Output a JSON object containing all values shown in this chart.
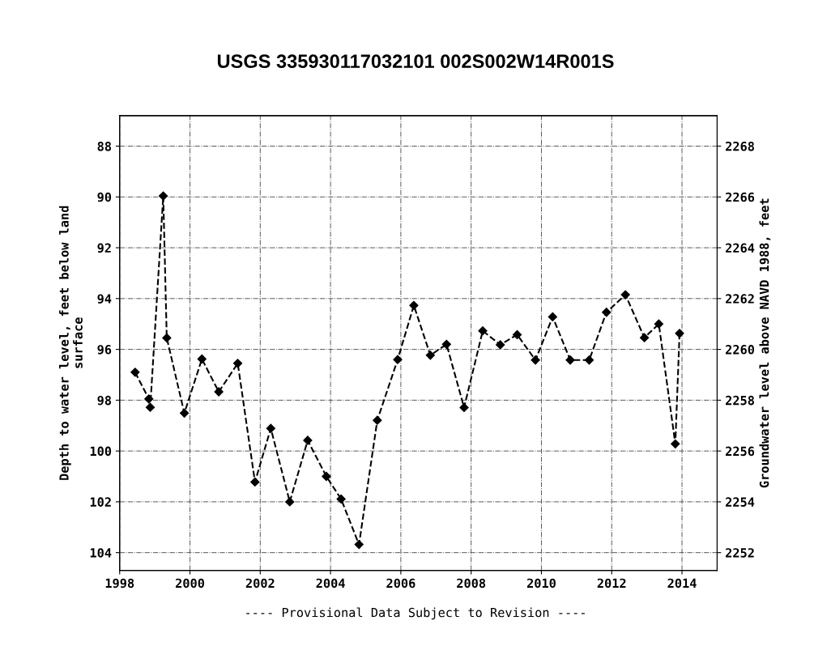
{
  "chart_data": {
    "type": "line",
    "title": "USGS 335930117032101 002S002W14R001S",
    "xlabel": null,
    "ylabel": "Depth to water level, feet below land\nsurface",
    "y2label": "Groundwater level above NAVD 1988, feet",
    "annotations": [
      "---- Provisional Data Subject to Revision ----"
    ],
    "series": [
      {
        "color": "#000000",
        "x": [
          1998.44,
          1998.83,
          1998.87,
          1999.24,
          1999.34,
          1999.84,
          2000.34,
          2000.82,
          2001.36,
          2001.85,
          2002.3,
          2002.84,
          2003.35,
          2003.88,
          2004.3,
          2004.81,
          2005.33,
          2005.91,
          2006.37,
          2006.84,
          2007.3,
          2007.8,
          2008.33,
          2008.83,
          2009.31,
          2009.83,
          2010.32,
          2010.82,
          2011.36,
          2011.85,
          2012.39,
          2012.93,
          2013.34,
          2013.81,
          2013.93
        ],
        "values": [
          96.9,
          97.95,
          98.28,
          89.96,
          95.55,
          98.51,
          96.38,
          97.67,
          96.55,
          101.22,
          99.11,
          102.0,
          99.58,
          101.0,
          101.89,
          103.68,
          98.79,
          96.4,
          94.27,
          96.23,
          95.8,
          98.29,
          95.27,
          95.82,
          95.42,
          96.42,
          94.72,
          96.42,
          96.42,
          94.54,
          93.85,
          95.54,
          95.0,
          99.72,
          95.37
        ]
      }
    ],
    "xlim": [
      1998,
      2015
    ],
    "xticks": [
      1998,
      2000,
      2002,
      2004,
      2006,
      2008,
      2010,
      2012,
      2014
    ],
    "ylim": [
      104.7,
      86.8
    ],
    "yticks": [
      88,
      90,
      92,
      94,
      96,
      98,
      100,
      102,
      104
    ],
    "y2lim": [
      2251.3,
      2269.2
    ],
    "y2ticks": [
      2252,
      2254,
      2256,
      2258,
      2260,
      2262,
      2264,
      2266,
      2268
    ],
    "grid": true,
    "marker": "diamond",
    "line_style": "dashed"
  }
}
